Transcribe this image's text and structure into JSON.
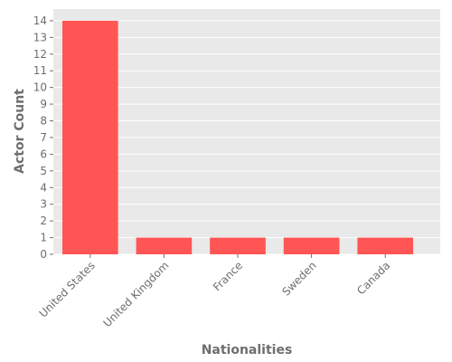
{
  "chart_data": {
    "type": "bar",
    "title": "",
    "xlabel": "Nationalities",
    "ylabel": "Actor Count",
    "categories": [
      "United States",
      "United Kingdom",
      "France",
      "Sweden",
      "Canada"
    ],
    "values": [
      14,
      1,
      1,
      1,
      1
    ],
    "ylim": [
      0,
      14.7
    ],
    "yticks": [
      0,
      1,
      2,
      3,
      4,
      5,
      6,
      7,
      8,
      9,
      10,
      11,
      12,
      13,
      14
    ],
    "grid": true,
    "legend": "none",
    "colors": {
      "bar": "#ff5555",
      "plot_background": "#e9e9e9",
      "grid": "#ffffff",
      "text": "#6e6e6e"
    }
  }
}
